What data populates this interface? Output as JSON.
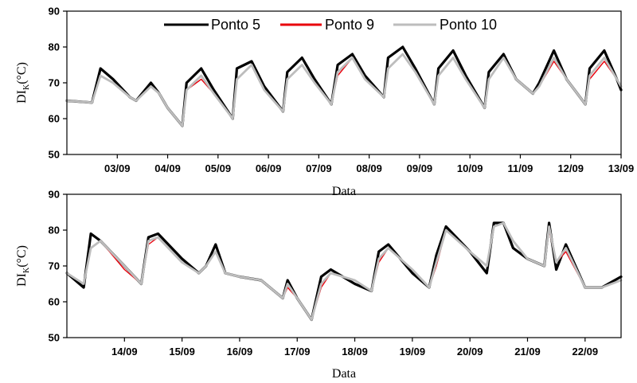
{
  "legend": {
    "items": [
      {
        "name": "Ponto 5",
        "color": "#000000"
      },
      {
        "name": "Ponto 9",
        "color": "#e8000b"
      },
      {
        "name": "Ponto 10",
        "color": "#bdbdbd"
      }
    ]
  },
  "chart_data": [
    {
      "type": "line",
      "xlabel": "Data",
      "ylabel": "DI",
      "ylabel_sub": "K",
      "ylabel_unit": "(°C)",
      "ylim": [
        50,
        90
      ],
      "yticks": [
        50,
        60,
        70,
        80,
        90
      ],
      "xlim": [
        "02/09",
        "13/09"
      ],
      "xticks": [
        "03/09",
        "04/09",
        "05/09",
        "06/09",
        "07/09",
        "08/09",
        "09/09",
        "10/09",
        "11/09",
        "12/09",
        "13/09"
      ],
      "x": [
        "02/09 00:00",
        "02/09 12:00",
        "02/09 16:00",
        "02/09 22:00",
        "03/09 06:00",
        "03/09 09:00",
        "03/09 16:00",
        "03/09 20:00",
        "04/09 00:00",
        "04/09 07:00",
        "04/09 09:00",
        "04/09 16:00",
        "04/09 22:00",
        "05/09 07:00",
        "05/09 09:00",
        "05/09 16:00",
        "05/09 22:00",
        "06/09 07:00",
        "06/09 09:00",
        "06/09 16:00",
        "06/09 22:00",
        "07/09 06:00",
        "07/09 09:00",
        "07/09 16:00",
        "07/09 22:00",
        "08/09 07:00",
        "08/09 09:00",
        "08/09 16:00",
        "08/09 22:00",
        "09/09 07:00",
        "09/09 09:00",
        "09/09 16:00",
        "09/09 22:00",
        "10/09 07:00",
        "10/09 09:00",
        "10/09 16:00",
        "10/09 22:00",
        "11/09 06:00",
        "11/09 09:00",
        "11/09 16:00",
        "11/09 22:00",
        "12/09 07:00",
        "12/09 09:00",
        "12/09 16:00",
        "12/09 22:00",
        "13/09 00:00"
      ],
      "series": [
        {
          "name": "Ponto 5",
          "color": "#000000",
          "values": [
            65,
            64.5,
            74,
            71,
            66,
            65,
            70,
            67,
            63,
            58,
            70,
            74,
            68,
            60,
            74,
            76,
            69,
            62,
            73,
            77,
            71,
            64,
            75,
            78,
            72,
            66,
            77,
            80,
            74,
            64,
            74,
            79,
            72,
            63,
            73,
            78,
            71,
            67,
            70,
            79,
            71,
            64,
            74,
            79,
            71,
            68
          ]
        },
        {
          "name": "Ponto 9",
          "color": "#e8000b",
          "values": [
            65,
            64.5,
            72,
            70,
            66,
            65,
            69,
            67,
            63,
            58,
            68,
            71,
            67,
            60,
            71,
            75,
            68,
            62,
            71,
            75,
            70,
            64,
            72,
            77,
            71,
            66,
            74,
            78,
            73,
            64,
            72,
            77,
            71,
            63,
            71,
            77,
            71,
            67,
            69,
            76,
            71,
            64,
            71,
            76,
            71,
            69
          ]
        },
        {
          "name": "Ponto 10",
          "color": "#bdbdbd",
          "values": [
            65,
            64.5,
            72,
            70,
            66,
            65,
            69,
            67,
            63,
            58,
            68,
            72,
            67,
            60,
            71,
            75,
            68,
            62,
            71,
            75,
            70,
            64,
            73,
            77,
            71,
            66,
            74,
            78,
            73,
            64,
            72,
            77,
            71,
            63,
            71,
            77,
            71,
            67,
            69,
            77,
            71,
            64,
            72,
            77,
            71,
            69
          ]
        }
      ]
    },
    {
      "type": "line",
      "xlabel": "Data",
      "ylabel": "DI",
      "ylabel_sub": "K",
      "ylabel_unit": "(°C)",
      "ylim": [
        50,
        90
      ],
      "yticks": [
        50,
        60,
        70,
        80,
        90
      ],
      "xlim": [
        "13/09",
        "22/09 15:00"
      ],
      "xticks": [
        "14/09",
        "15/09",
        "16/09",
        "17/09",
        "18/09",
        "19/09",
        "20/09",
        "21/09",
        "22/09"
      ],
      "x": [
        "13/09 00:00",
        "13/09 07:00",
        "13/09 10:00",
        "13/09 14:00",
        "14/09 00:00",
        "14/09 07:00",
        "14/09 10:00",
        "14/09 14:00",
        "15/09 00:00",
        "15/09 07:00",
        "15/09 10:00",
        "15/09 14:00",
        "15/09 18:00",
        "16/09 00:00",
        "16/09 09:00",
        "16/09 18:00",
        "16/09 20:00",
        "17/09 00:00",
        "17/09 06:00",
        "17/09 10:00",
        "17/09 14:00",
        "18/09 00:00",
        "18/09 07:00",
        "18/09 10:00",
        "18/09 14:00",
        "19/09 00:00",
        "19/09 07:00",
        "19/09 10:00",
        "19/09 14:00",
        "20/09 00:00",
        "20/09 07:00",
        "20/09 10:00",
        "20/09 14:00",
        "20/09 18:00",
        "21/09 00:00",
        "21/09 07:00",
        "21/09 09:00",
        "21/09 12:00",
        "21/09 16:00",
        "22/09 00:00",
        "22/09 07:00",
        "22/09 15:00"
      ],
      "series": [
        {
          "name": "Ponto 5",
          "color": "#000000",
          "values": [
            68,
            64,
            79,
            77,
            70,
            65,
            78,
            79,
            72,
            68,
            70,
            76,
            68,
            67,
            66,
            61,
            66,
            61,
            55,
            67,
            69,
            65,
            63,
            74,
            76,
            68,
            64,
            73,
            81,
            74,
            68,
            82,
            82,
            75,
            72,
            70,
            82,
            69,
            76,
            64,
            64,
            67
          ]
        },
        {
          "name": "Ponto 9",
          "color": "#e8000b",
          "values": [
            68,
            65,
            75,
            77,
            69,
            65,
            76,
            78,
            71,
            68,
            70,
            74,
            68,
            67,
            66,
            61,
            64,
            61,
            55,
            64,
            68,
            66,
            63,
            71,
            75,
            69,
            64,
            70,
            80,
            74,
            70,
            81,
            82,
            77,
            72,
            70,
            80,
            71,
            74,
            64,
            64,
            66
          ]
        },
        {
          "name": "Ponto 10",
          "color": "#bdbdbd",
          "values": [
            68,
            65,
            75,
            77,
            70,
            65,
            77,
            78,
            71,
            68,
            70,
            74,
            68,
            67,
            66,
            61,
            65,
            61,
            55,
            65,
            68,
            66,
            63,
            72,
            75,
            69,
            64,
            71,
            80,
            74,
            70,
            81,
            82,
            77,
            72,
            70,
            81,
            71,
            75,
            64,
            64,
            66
          ]
        }
      ]
    }
  ]
}
